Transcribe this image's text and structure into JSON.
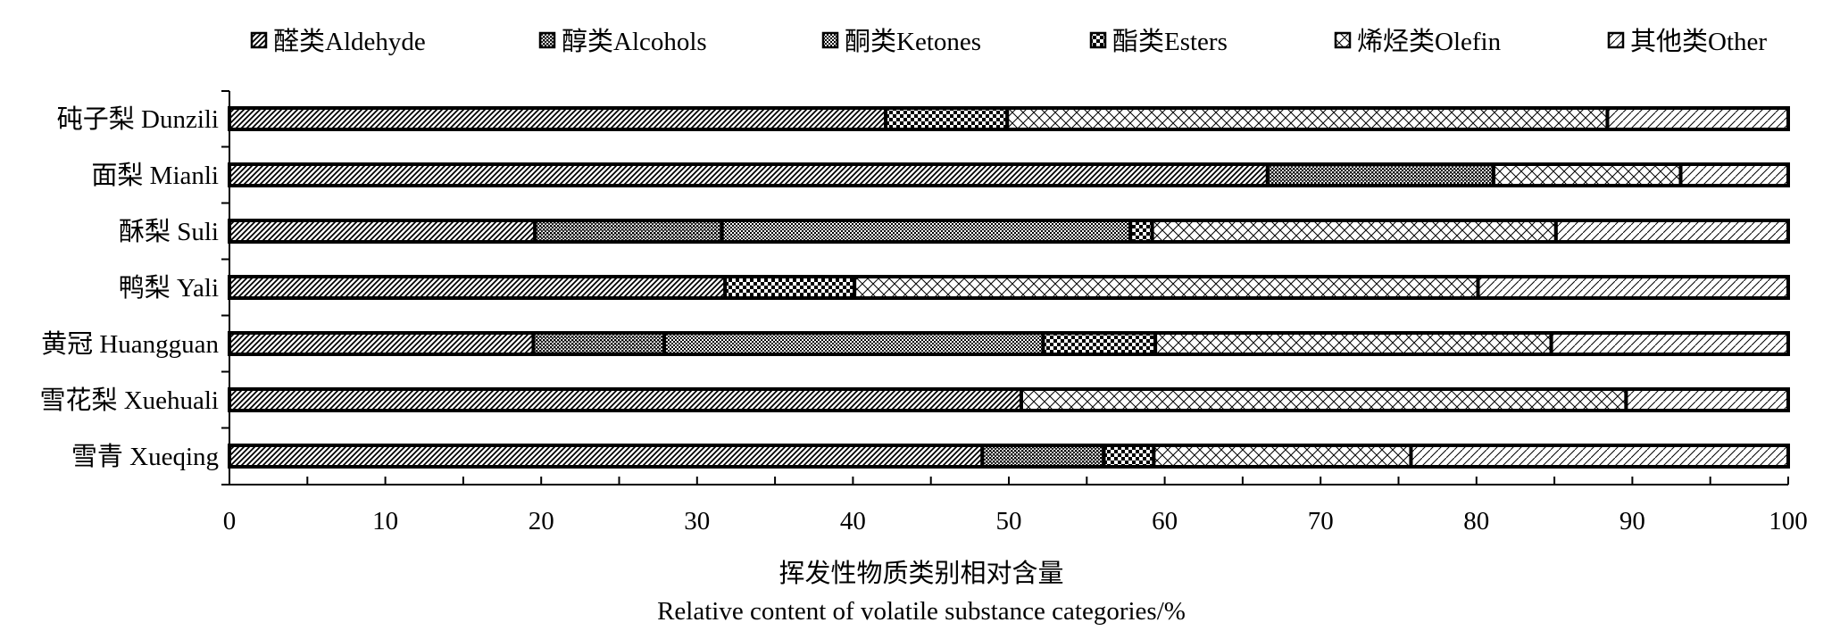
{
  "chart_data": {
    "type": "bar",
    "orientation": "horizontal",
    "stacked": true,
    "categories": [
      "砘子梨 Dunzili",
      "面梨 Mianli",
      "酥梨 Suli",
      "鸭梨 Yali",
      "黄冠 Huangguan",
      "雪花梨 Xuehuali",
      "雪青 Xueqing"
    ],
    "series": [
      {
        "name": "醛类Aldehyde",
        "pattern": "diagonal-dense",
        "values": [
          42.1,
          66.6,
          19.6,
          31.8,
          19.5,
          50.8,
          48.3
        ]
      },
      {
        "name": "醇类Alcohols",
        "pattern": "dense-dots",
        "values": [
          0,
          14.5,
          12.0,
          0,
          8.4,
          0,
          7.8
        ]
      },
      {
        "name": "酮类Ketones",
        "pattern": "fine-checker",
        "values": [
          0,
          0,
          26.2,
          0,
          24.3,
          0,
          0
        ]
      },
      {
        "name": "酯类Esters",
        "pattern": "checker",
        "values": [
          7.8,
          0,
          1.4,
          8.3,
          7.2,
          0,
          3.2
        ]
      },
      {
        "name": "烯烃类Olefin",
        "pattern": "crosshatch",
        "values": [
          38.5,
          12.0,
          25.9,
          40.0,
          25.4,
          38.8,
          16.5
        ]
      },
      {
        "name": "其他类Other",
        "pattern": "diagonal-sparse",
        "values": [
          11.6,
          6.9,
          14.9,
          19.9,
          15.2,
          10.4,
          24.2
        ]
      }
    ],
    "xlim": [
      0,
      100
    ],
    "xticks": [
      0,
      10,
      20,
      30,
      40,
      50,
      60,
      70,
      80,
      90,
      100
    ],
    "xlabel_line1": "挥发性物质类别相对含量",
    "xlabel_line2": "Relative content of volatile substance categories/%",
    "legend_position": "top",
    "grid": false
  }
}
